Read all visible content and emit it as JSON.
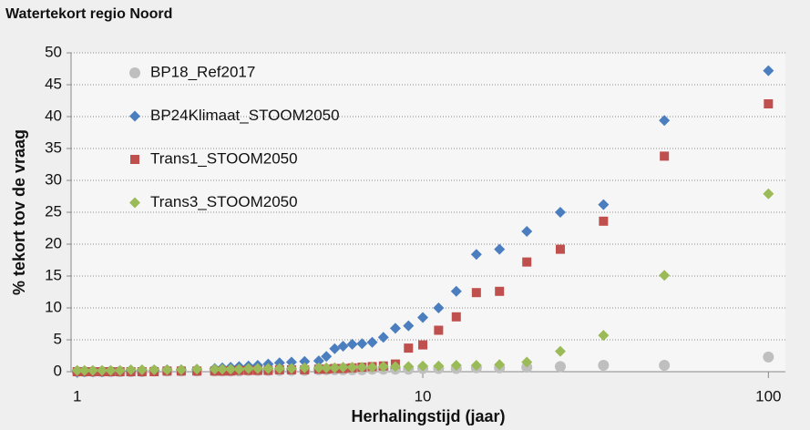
{
  "chart_data": {
    "type": "scatter",
    "title": "Watertekort regio Noord",
    "x_label": "Herhalingstijd (jaar)",
    "y_label": "% tekort tov de vraag",
    "x_scale": "log",
    "grid": true,
    "legend": "top-left",
    "xlim": [
      0.96,
      112
    ],
    "xticks": [
      1,
      10,
      100
    ],
    "ylim": [
      0,
      50
    ],
    "yticks": [
      0,
      5,
      10,
      15,
      20,
      25,
      30,
      35,
      40,
      45,
      50
    ],
    "x": [
      100,
      50,
      33.33,
      25,
      20,
      16.67,
      14.29,
      12.5,
      11.11,
      10,
      9.09,
      8.33,
      7.69,
      7.14,
      6.67,
      6.25,
      5.88,
      5.56,
      5.26,
      5,
      4.55,
      4.17,
      3.85,
      3.57,
      3.33,
      3.13,
      2.94,
      2.78,
      2.63,
      2.5,
      2.22,
      2,
      1.82,
      1.67,
      1.54,
      1.43,
      1.33,
      1.25,
      1.18,
      1.11,
      1.05,
      1
    ],
    "series": [
      {
        "name": "BP18_Ref2017",
        "color": "#bfbfbf",
        "marker": "circle",
        "values": [
          2.3,
          1,
          1,
          0.8,
          0.7,
          0.6,
          0.6,
          0.5,
          0.5,
          0.5,
          0.4,
          0.4,
          0.4,
          0.4,
          0.3,
          0.3,
          0.3,
          0.3,
          0.3,
          0.3,
          0.2,
          0.2,
          0.2,
          0.2,
          0.2,
          0.2,
          0.1,
          0.1,
          0.1,
          0.1,
          0.1,
          0.1,
          0.1,
          0.1,
          0,
          0,
          0,
          0,
          0,
          0,
          0,
          0
        ]
      },
      {
        "name": "BP24Klimaat_STOOM2050",
        "color": "#4a7ebf",
        "marker": "diamond",
        "values": [
          47.2,
          39.4,
          26.2,
          25,
          22,
          19.2,
          18.4,
          12.6,
          10,
          8.5,
          7.2,
          6.8,
          5.4,
          4.6,
          4.4,
          4.3,
          4,
          3.6,
          2.4,
          1.7,
          1.6,
          1.5,
          1.4,
          1.2,
          1,
          0.9,
          0.8,
          0.7,
          0.6,
          0.5,
          0.4,
          0.3,
          0.3,
          0.2,
          0.2,
          0.1,
          0.1,
          0.1,
          0,
          0,
          0,
          0
        ]
      },
      {
        "name": "Trans1_STOOM2050",
        "color": "#c0504d",
        "marker": "square",
        "values": [
          42,
          33.8,
          23.6,
          19.2,
          17.2,
          12.6,
          12.4,
          8.6,
          6.5,
          4.2,
          3.7,
          1.2,
          0.9,
          0.8,
          0.7,
          0.6,
          0.5,
          0.5,
          0.4,
          0.4,
          0.3,
          0.3,
          0.3,
          0.2,
          0.2,
          0.2,
          0.2,
          0.1,
          0.1,
          0.1,
          0.1,
          0.1,
          0.1,
          0,
          0,
          0,
          0,
          0,
          0,
          0,
          0,
          0
        ]
      },
      {
        "name": "Trans3_STOOM2050",
        "color": "#9bbb59",
        "marker": "diamond",
        "values": [
          27.9,
          15.1,
          5.7,
          3.2,
          1.5,
          1.1,
          1,
          1,
          0.9,
          0.9,
          0.8,
          0.8,
          0.8,
          0.7,
          0.7,
          0.7,
          0.7,
          0.6,
          0.6,
          0.6,
          0.6,
          0.5,
          0.5,
          0.5,
          0.5,
          0.5,
          0.4,
          0.4,
          0.4,
          0.4,
          0.4,
          0.3,
          0.3,
          0.3,
          0.3,
          0.3,
          0.2,
          0.2,
          0.2,
          0.2,
          0.2,
          0.2
        ]
      }
    ]
  }
}
